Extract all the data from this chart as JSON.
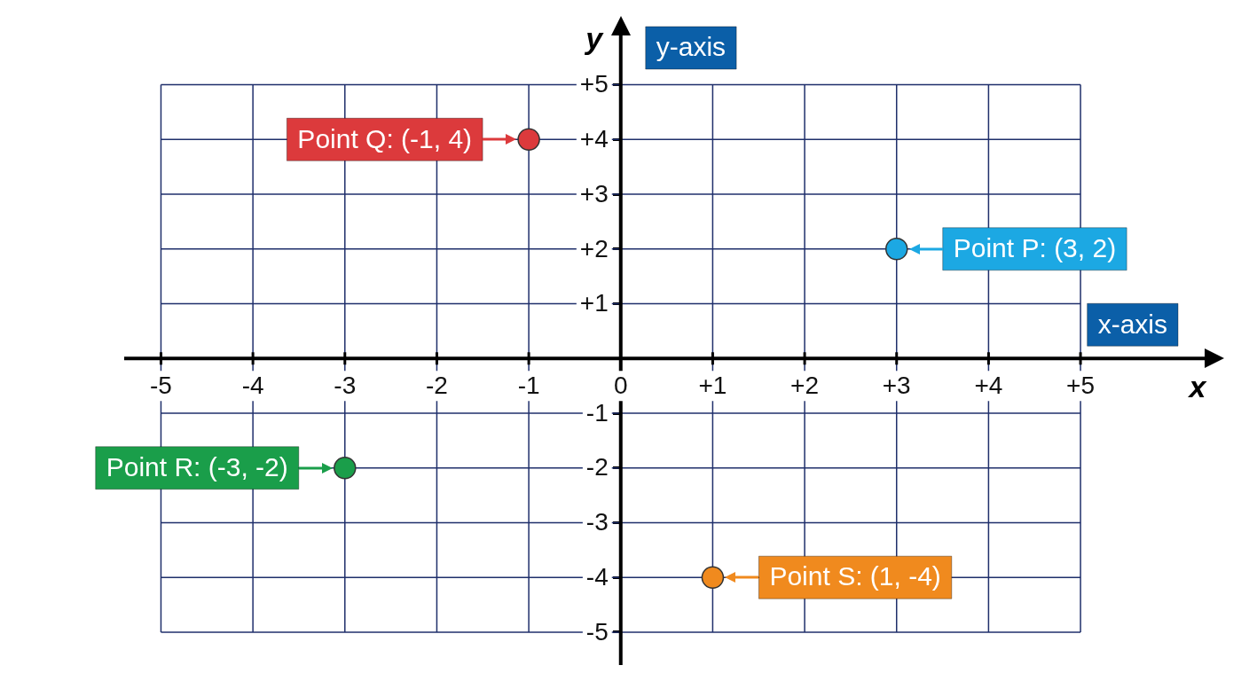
{
  "chart_data": {
    "type": "scatter",
    "xlabel": "x",
    "ylabel": "y",
    "xlim": [
      -5.4,
      6.35
    ],
    "ylim": [
      -5.6,
      5.9
    ],
    "xticks": [
      -5,
      -4,
      -3,
      -2,
      -1,
      0,
      {
        "value": 1,
        "label": "+1"
      },
      {
        "value": 2,
        "label": "+2"
      },
      {
        "value": 3,
        "label": "+3"
      },
      {
        "value": 4,
        "label": "+4"
      },
      {
        "value": 5,
        "label": "+5"
      }
    ],
    "yticks": [
      {
        "value": -5,
        "label": "-5"
      },
      {
        "value": -4,
        "label": "-4"
      },
      {
        "value": -3,
        "label": "-3"
      },
      {
        "value": -2,
        "label": "-2"
      },
      {
        "value": -1,
        "label": "-1"
      },
      {
        "value": 0,
        "label": null
      },
      {
        "value": 1,
        "label": "+1"
      },
      {
        "value": 2,
        "label": "+2"
      },
      {
        "value": 3,
        "label": "+3"
      },
      {
        "value": 4,
        "label": "+4"
      },
      {
        "value": 5,
        "label": "+5"
      }
    ],
    "grid": true,
    "legend": false,
    "marker": "circle",
    "series": [
      {
        "x": [
          3,
          -1,
          -3,
          1
        ],
        "values": [
          2,
          4,
          -2,
          -4
        ],
        "colors": [
          "#1ca8e3",
          "#dc3a3c",
          "#1a9e4a",
          "#f08a1e"
        ]
      }
    ],
    "annotations": [
      "y-axis",
      "x-axis",
      {
        "text": "Point P: (3, 2)",
        "x": 3,
        "y": 2
      },
      {
        "text": "Point Q: (-1, 4)",
        "x": -1,
        "y": 4
      },
      {
        "text": "Point R: (-3, -2)",
        "x": -3,
        "y": -2
      },
      {
        "text": "Point S: (1, -4)",
        "x": 1,
        "y": -4
      }
    ]
  }
}
